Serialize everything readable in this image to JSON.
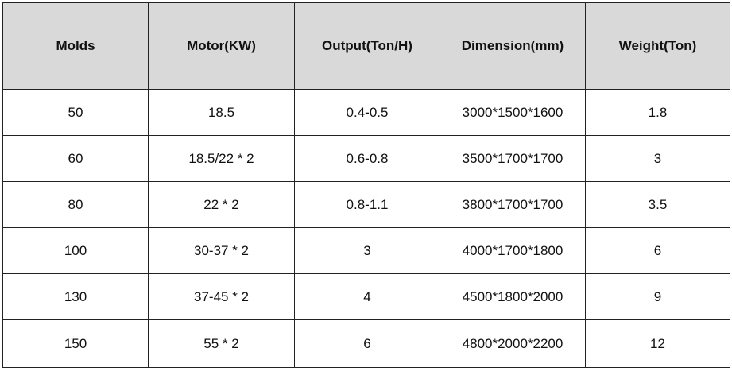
{
  "table": {
    "header": [
      "Molds",
      "Motor(KW)",
      "Output(Ton/H)",
      "Dimension(mm)",
      "Weight(Ton)"
    ],
    "rows": [
      [
        "50",
        "18.5",
        "0.4-0.5",
        "3000*1500*1600",
        "1.8"
      ],
      [
        "60",
        "18.5/22 * 2",
        "0.6-0.8",
        "3500*1700*1700",
        "3"
      ],
      [
        "80",
        "22 * 2",
        "0.8-1.1",
        "3800*1700*1700",
        "3.5"
      ],
      [
        "100",
        "30-37 * 2",
        "3",
        "4000*1700*1800",
        "6"
      ],
      [
        "130",
        "37-45 * 2",
        "4",
        "4500*1800*2000",
        "9"
      ],
      [
        "150",
        "55 * 2",
        "6",
        "4800*2000*2200",
        "12"
      ]
    ]
  }
}
